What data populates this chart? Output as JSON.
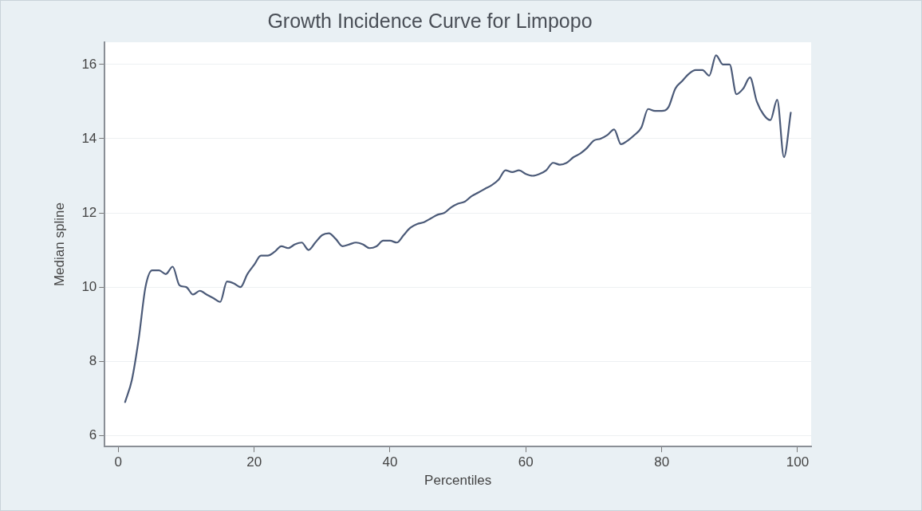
{
  "chart_data": {
    "type": "line",
    "title": "Growth Incidence Curve for Limpopo",
    "xlabel": "Percentiles",
    "ylabel": "Median spline",
    "x": [
      1,
      2,
      3,
      4,
      5,
      6,
      7,
      8,
      9,
      10,
      11,
      12,
      13,
      14,
      15,
      16,
      17,
      18,
      19,
      20,
      21,
      22,
      23,
      24,
      25,
      26,
      27,
      28,
      29,
      30,
      31,
      32,
      33,
      34,
      35,
      36,
      37,
      38,
      39,
      40,
      41,
      42,
      43,
      44,
      45,
      46,
      47,
      48,
      49,
      50,
      51,
      52,
      53,
      54,
      55,
      56,
      57,
      58,
      59,
      60,
      61,
      62,
      63,
      64,
      65,
      66,
      67,
      68,
      69,
      70,
      71,
      72,
      73,
      74,
      75,
      76,
      77,
      78,
      79,
      80,
      81,
      82,
      83,
      84,
      85,
      86,
      87,
      88,
      89,
      90,
      91,
      92,
      93,
      94,
      95,
      96,
      97,
      98,
      99
    ],
    "series": [
      {
        "color": "#4b5a78",
        "values": [
          6.9,
          7.5,
          8.6,
          10.0,
          10.45,
          10.45,
          10.35,
          10.55,
          10.05,
          10.0,
          9.8,
          9.9,
          9.8,
          9.7,
          9.6,
          10.15,
          10.1,
          10.0,
          10.35,
          10.6,
          10.85,
          10.85,
          10.95,
          11.1,
          11.05,
          11.15,
          11.2,
          11.0,
          11.2,
          11.4,
          11.45,
          11.3,
          11.1,
          11.15,
          11.2,
          11.15,
          11.05,
          11.1,
          11.25,
          11.25,
          11.2,
          11.4,
          11.6,
          11.7,
          11.75,
          11.85,
          11.95,
          12.0,
          12.15,
          12.25,
          12.3,
          12.45,
          12.55,
          12.65,
          12.75,
          12.9,
          13.15,
          13.1,
          13.15,
          13.05,
          13.0,
          13.05,
          13.15,
          13.35,
          13.3,
          13.35,
          13.5,
          13.6,
          13.75,
          13.95,
          14.0,
          14.1,
          14.25,
          13.85,
          13.95,
          14.1,
          14.3,
          14.8,
          14.75,
          14.75,
          14.85,
          15.35,
          15.55,
          15.75,
          15.85,
          15.85,
          15.7,
          16.25,
          16.0,
          16.0,
          15.2,
          15.35,
          15.65,
          15.0,
          14.65,
          14.5,
          15.05,
          13.5,
          14.7
        ]
      }
    ],
    "xlim": [
      -2,
      102
    ],
    "xticks": [
      0,
      20,
      40,
      60,
      80,
      100
    ],
    "ylim": [
      5.7,
      16.6
    ],
    "yticks": [
      6,
      8,
      10,
      12,
      14,
      16
    ],
    "grid": "y",
    "legend": false,
    "marker": "none",
    "line_style": "solid"
  }
}
